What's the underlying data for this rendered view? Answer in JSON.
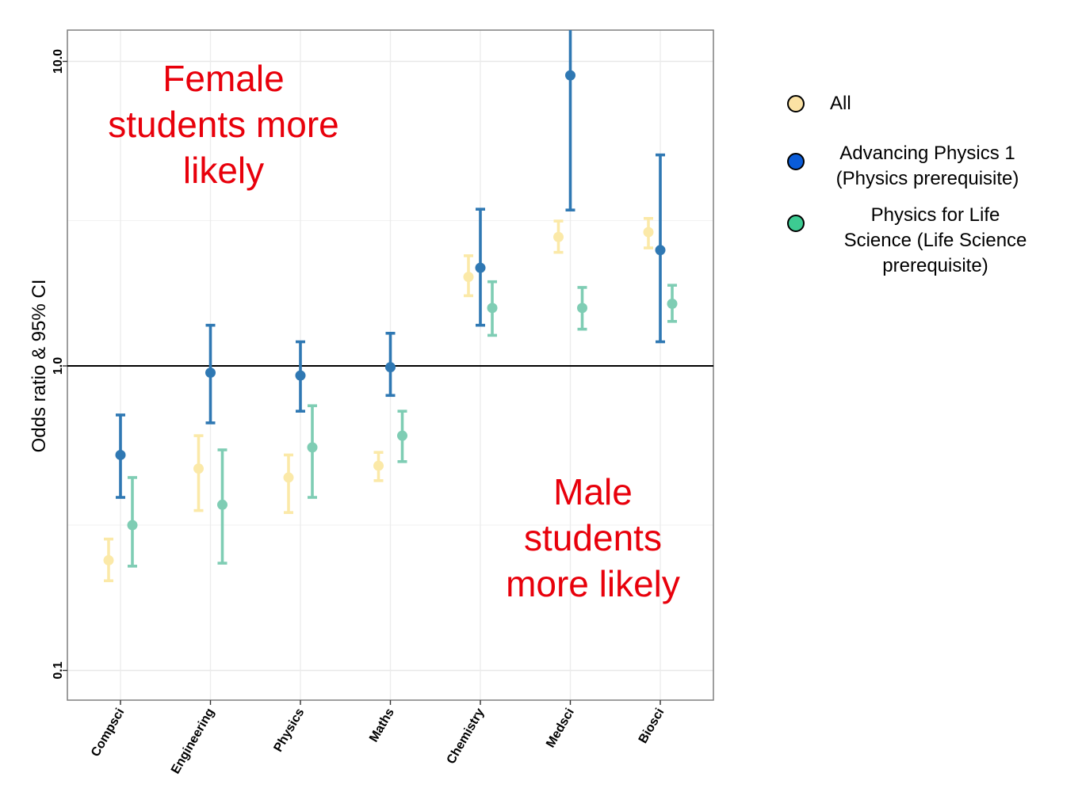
{
  "chart_data": {
    "type": "scatter",
    "subtype": "point-range (odds ratio with 95% CI)",
    "ylabel": "Odds ratio & 95% CI",
    "xlabel": "",
    "yscale": "log",
    "ylim": [
      0.07,
      13.0
    ],
    "yticks": [
      0.1,
      1.0,
      10.0
    ],
    "ytick_labels": [
      "0.1",
      "1.0",
      "10.0"
    ],
    "reference_line": 1.0,
    "grid": true,
    "legend_position": "right",
    "categories": [
      "Compsci",
      "Engineering",
      "Physics",
      "Maths",
      "Chemistry",
      "Medsci",
      "Biosci"
    ],
    "series": [
      {
        "name": "All",
        "color": "#FBE9A8",
        "points": [
          {
            "y": 0.23,
            "lo": 0.197,
            "hi": 0.27
          },
          {
            "y": 0.46,
            "lo": 0.335,
            "hi": 0.59
          },
          {
            "y": 0.43,
            "lo": 0.33,
            "hi": 0.51
          },
          {
            "y": 0.47,
            "lo": 0.42,
            "hi": 0.52
          },
          {
            "y": 1.96,
            "lo": 1.7,
            "hi": 2.3
          },
          {
            "y": 2.65,
            "lo": 2.36,
            "hi": 2.99
          },
          {
            "y": 2.75,
            "lo": 2.44,
            "hi": 3.05
          }
        ]
      },
      {
        "name": "Advancing Physics 1 (Physics prerequisite)",
        "color": "#2F78B3",
        "points": [
          {
            "y": 0.51,
            "lo": 0.37,
            "hi": 0.69
          },
          {
            "y": 0.95,
            "lo": 0.65,
            "hi": 1.36
          },
          {
            "y": 0.93,
            "lo": 0.71,
            "hi": 1.2
          },
          {
            "y": 0.99,
            "lo": 0.8,
            "hi": 1.28
          },
          {
            "y": 2.1,
            "lo": 1.36,
            "hi": 3.27
          },
          {
            "y": 9.0,
            "lo": 3.25,
            "hi": 13.0
          },
          {
            "y": 2.4,
            "lo": 1.2,
            "hi": 4.93
          }
        ]
      },
      {
        "name": "Physics for Life Science (Life Science prerequisite)",
        "color": "#7FCDB4",
        "points": [
          {
            "y": 0.3,
            "lo": 0.22,
            "hi": 0.43
          },
          {
            "y": 0.35,
            "lo": 0.225,
            "hi": 0.53
          },
          {
            "y": 0.54,
            "lo": 0.37,
            "hi": 0.74
          },
          {
            "y": 0.59,
            "lo": 0.485,
            "hi": 0.71
          },
          {
            "y": 1.55,
            "lo": 1.26,
            "hi": 1.89
          },
          {
            "y": 1.55,
            "lo": 1.32,
            "hi": 1.81
          },
          {
            "y": 1.6,
            "lo": 1.4,
            "hi": 1.84
          }
        ]
      }
    ],
    "annotations": {
      "female": [
        "Female",
        "students more",
        "likely"
      ],
      "male": [
        "Male",
        "students",
        "more likely"
      ]
    },
    "annotation_color": "#E8000B"
  },
  "legend": {
    "items": [
      {
        "lines": [
          "All"
        ],
        "fill": "#FBE2A4"
      },
      {
        "lines": [
          "Advancing Physics 1",
          "(Physics prerequisite)"
        ],
        "fill": "#0A5CD8"
      },
      {
        "lines": [
          "Physics for Life",
          "Science (Life Science",
          "prerequisite)"
        ],
        "fill": "#3DCB92"
      }
    ]
  }
}
